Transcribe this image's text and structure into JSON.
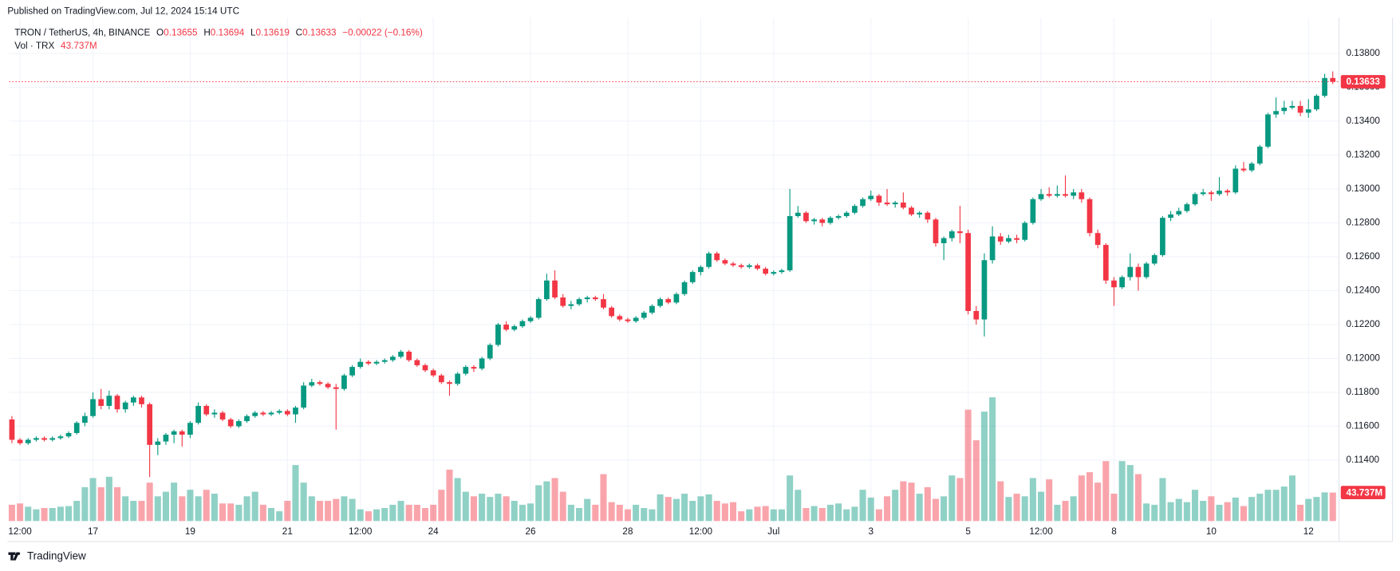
{
  "header": {
    "published": "Published on TradingView.com, Jul 12, 2024 15:14 UTC",
    "symbol": "TRON / TetherUS, 4h, BINANCE",
    "ohlc_labels": [
      "O",
      "H",
      "L",
      "C"
    ],
    "change": "−0.00022 (−0.16%)",
    "volume_title": "Vol · TRX"
  },
  "footer": {
    "brand": "TradingView"
  },
  "chart_data": {
    "type": "candlestick",
    "up_color": "#089981",
    "down_color": "#f23645",
    "grid": true,
    "ylim": [
      0.1103,
      0.1401
    ],
    "yticks": [
      {
        "value": 0.114,
        "label": "0.11400"
      },
      {
        "value": 0.116,
        "label": "0.11600"
      },
      {
        "value": 0.118,
        "label": "0.11800"
      },
      {
        "value": 0.12,
        "label": "0.12000"
      },
      {
        "value": 0.122,
        "label": "0.12200"
      },
      {
        "value": 0.124,
        "label": "0.12400"
      },
      {
        "value": 0.126,
        "label": "0.12600"
      },
      {
        "value": 0.128,
        "label": "0.12800"
      },
      {
        "value": 0.13,
        "label": "0.13000"
      },
      {
        "value": 0.132,
        "label": "0.13200"
      },
      {
        "value": 0.134,
        "label": "0.13400"
      },
      {
        "value": 0.136,
        "label": "0.13600"
      },
      {
        "value": 0.138,
        "label": "0.13800"
      }
    ],
    "categories": [
      null,
      "12:00",
      null,
      null,
      null,
      null,
      null,
      null,
      null,
      null,
      "17",
      null,
      null,
      null,
      null,
      null,
      null,
      null,
      null,
      null,
      null,
      null,
      "19",
      null,
      null,
      null,
      null,
      null,
      null,
      null,
      null,
      null,
      null,
      null,
      "21",
      null,
      null,
      null,
      null,
      null,
      null,
      null,
      null,
      "12:00",
      null,
      null,
      null,
      null,
      null,
      null,
      null,
      null,
      "24",
      null,
      null,
      null,
      null,
      null,
      null,
      null,
      null,
      null,
      null,
      null,
      "26",
      null,
      null,
      null,
      null,
      null,
      null,
      null,
      null,
      null,
      null,
      null,
      "28",
      null,
      null,
      null,
      null,
      null,
      null,
      null,
      null,
      "12:00",
      null,
      null,
      null,
      null,
      null,
      null,
      null,
      null,
      "Jul",
      null,
      null,
      null,
      null,
      null,
      null,
      null,
      null,
      null,
      null,
      null,
      "3",
      null,
      null,
      null,
      null,
      null,
      null,
      null,
      null,
      null,
      null,
      null,
      "5",
      null,
      null,
      null,
      null,
      null,
      null,
      null,
      null,
      "12:00",
      null,
      null,
      null,
      null,
      null,
      null,
      null,
      null,
      "8",
      null,
      null,
      null,
      null,
      null,
      null,
      null,
      null,
      null,
      null,
      null,
      "10",
      null,
      null,
      null,
      null,
      null,
      null,
      null,
      null,
      null,
      null,
      null,
      "12",
      null,
      null,
      null
    ],
    "open": [
      0.1164,
      0.1152,
      0.115,
      0.1152,
      0.1153,
      0.1152,
      0.1153,
      0.1154,
      0.1156,
      0.1162,
      0.1166,
      0.1176,
      0.1172,
      0.1178,
      0.117,
      0.1174,
      0.1177,
      0.1173,
      0.1149,
      0.1151,
      0.1155,
      0.1157,
      0.1155,
      0.1162,
      0.1172,
      0.1167,
      0.1168,
      0.1164,
      0.116,
      0.1163,
      0.1166,
      0.1168,
      0.1167,
      0.1168,
      0.1169,
      0.1167,
      0.1171,
      0.1184,
      0.1186,
      0.1185,
      0.1183,
      0.1182,
      0.119,
      0.1195,
      0.1198,
      0.1197,
      0.1198,
      0.1199,
      0.1201,
      0.1204,
      0.1199,
      0.1196,
      0.1193,
      0.119,
      0.1186,
      0.1185,
      0.1191,
      0.1195,
      0.1194,
      0.12,
      0.1208,
      0.122,
      0.1217,
      0.1219,
      0.1222,
      0.1224,
      0.1235,
      0.1246,
      0.1236,
      0.1231,
      0.1232,
      0.1235,
      0.1236,
      0.1235,
      0.123,
      0.1225,
      0.1223,
      0.1222,
      0.1224,
      0.1227,
      0.1231,
      0.1235,
      0.1233,
      0.1238,
      0.1245,
      0.1251,
      0.1254,
      0.1262,
      0.1258,
      0.1256,
      0.1255,
      0.1254,
      0.1255,
      0.1253,
      0.125,
      0.1251,
      0.1252,
      0.1284,
      0.1286,
      0.1281,
      0.1282,
      0.128,
      0.1283,
      0.1284,
      0.1286,
      0.129,
      0.1294,
      0.1296,
      0.1292,
      0.1291,
      0.1292,
      0.1289,
      0.1285,
      0.1286,
      0.1282,
      0.1268,
      0.1271,
      0.1275,
      0.1274,
      0.1228,
      0.1223,
      0.1258,
      0.1272,
      0.1269,
      0.1271,
      0.127,
      0.128,
      0.1294,
      0.1297,
      0.1296,
      0.1297,
      0.1296,
      0.1298,
      0.1294,
      0.1274,
      0.1267,
      0.1246,
      0.1242,
      0.1248,
      0.1254,
      0.1248,
      0.1256,
      0.1261,
      0.1283,
      0.1285,
      0.1287,
      0.1291,
      0.1297,
      0.1298,
      0.1297,
      0.1299,
      0.1298,
      0.1312,
      0.1311,
      0.1315,
      0.1325,
      0.1344,
      0.1346,
      0.1348,
      0.1349,
      0.1345,
      0.1347,
      0.1355,
      0.13655
    ],
    "high": [
      0.1166,
      0.1153,
      0.1153,
      0.1154,
      0.1154,
      0.1154,
      0.1155,
      0.1157,
      0.1163,
      0.1168,
      0.118,
      0.1182,
      0.1181,
      0.1179,
      0.1175,
      0.1178,
      0.1178,
      0.1174,
      0.1153,
      0.1156,
      0.1158,
      0.1158,
      0.1163,
      0.1174,
      0.1173,
      0.117,
      0.1169,
      0.1165,
      0.1164,
      0.1167,
      0.1169,
      0.1169,
      0.1169,
      0.117,
      0.117,
      0.1172,
      0.1186,
      0.1188,
      0.1187,
      0.1186,
      0.1185,
      0.1191,
      0.1196,
      0.12,
      0.1199,
      0.1199,
      0.12,
      0.1202,
      0.1205,
      0.1205,
      0.12,
      0.1197,
      0.1194,
      0.1191,
      0.1187,
      0.1192,
      0.1196,
      0.1196,
      0.1201,
      0.1209,
      0.1221,
      0.1222,
      0.122,
      0.1223,
      0.1225,
      0.1236,
      0.125,
      0.1252,
      0.1238,
      0.1234,
      0.1236,
      0.1237,
      0.1237,
      0.1238,
      0.1231,
      0.1226,
      0.1224,
      0.1225,
      0.1228,
      0.1232,
      0.1236,
      0.1236,
      0.1239,
      0.1246,
      0.1252,
      0.1255,
      0.1263,
      0.1263,
      0.1259,
      0.1257,
      0.1256,
      0.1256,
      0.1256,
      0.1254,
      0.1252,
      0.1253,
      0.13,
      0.129,
      0.1287,
      0.1283,
      0.1283,
      0.1284,
      0.1285,
      0.1287,
      0.1291,
      0.1295,
      0.1299,
      0.1297,
      0.13,
      0.1293,
      0.1298,
      0.129,
      0.1287,
      0.1287,
      0.1283,
      0.1272,
      0.1276,
      0.129,
      0.1276,
      0.1231,
      0.1262,
      0.1278,
      0.1274,
      0.1273,
      0.1273,
      0.1281,
      0.1295,
      0.13,
      0.1301,
      0.1302,
      0.1308,
      0.13,
      0.13,
      0.1295,
      0.1276,
      0.1268,
      0.1248,
      0.1249,
      0.1262,
      0.1256,
      0.1257,
      0.1262,
      0.1284,
      0.1287,
      0.1289,
      0.1292,
      0.1298,
      0.13,
      0.1299,
      0.1307,
      0.13,
      0.1314,
      0.1316,
      0.1316,
      0.1326,
      0.1345,
      0.1354,
      0.1352,
      0.1352,
      0.1352,
      0.1353,
      0.1356,
      0.1368,
      0.13694
    ],
    "low": [
      0.115,
      0.1149,
      0.1149,
      0.1151,
      0.1151,
      0.1151,
      0.1152,
      0.1153,
      0.1155,
      0.116,
      0.1165,
      0.117,
      0.117,
      0.1168,
      0.1168,
      0.1172,
      0.1171,
      0.113,
      0.1143,
      0.1149,
      0.115,
      0.1148,
      0.1153,
      0.1161,
      0.1166,
      0.1165,
      0.1163,
      0.1159,
      0.1159,
      0.1162,
      0.1165,
      0.1166,
      0.1166,
      0.1167,
      0.1166,
      0.1162,
      0.117,
      0.1183,
      0.1184,
      0.1182,
      0.1158,
      0.1181,
      0.1189,
      0.1194,
      0.1196,
      0.1196,
      0.1197,
      0.1198,
      0.12,
      0.1198,
      0.1195,
      0.1192,
      0.1189,
      0.1185,
      0.1178,
      0.1184,
      0.119,
      0.1192,
      0.1193,
      0.1199,
      0.1207,
      0.1216,
      0.1216,
      0.1218,
      0.1221,
      0.1223,
      0.1234,
      0.1235,
      0.123,
      0.1229,
      0.1231,
      0.1233,
      0.1234,
      0.1229,
      0.1224,
      0.1222,
      0.1221,
      0.1221,
      0.1223,
      0.1226,
      0.123,
      0.1232,
      0.1232,
      0.1237,
      0.1244,
      0.1249,
      0.1253,
      0.1257,
      0.1255,
      0.1254,
      0.1253,
      0.1253,
      0.1252,
      0.1249,
      0.1249,
      0.125,
      0.1251,
      0.1283,
      0.128,
      0.1279,
      0.1278,
      0.1279,
      0.1282,
      0.1283,
      0.1285,
      0.1289,
      0.1293,
      0.129,
      0.129,
      0.1289,
      0.1288,
      0.1284,
      0.1283,
      0.128,
      0.1266,
      0.1258,
      0.1269,
      0.1268,
      0.1226,
      0.122,
      0.1213,
      0.1256,
      0.1267,
      0.1268,
      0.1268,
      0.1269,
      0.1279,
      0.1293,
      0.1295,
      0.1295,
      0.1295,
      0.1294,
      0.1292,
      0.1272,
      0.1265,
      0.1244,
      0.1231,
      0.1241,
      0.1246,
      0.124,
      0.1247,
      0.1255,
      0.126,
      0.1281,
      0.1284,
      0.1286,
      0.129,
      0.1296,
      0.1293,
      0.1296,
      0.1296,
      0.1297,
      0.131,
      0.131,
      0.1314,
      0.1324,
      0.1342,
      0.1344,
      0.1347,
      0.1343,
      0.1342,
      0.1346,
      0.1354,
      0.13619
    ],
    "close": [
      0.1152,
      0.115,
      0.1152,
      0.1153,
      0.1152,
      0.1153,
      0.1154,
      0.1156,
      0.1162,
      0.1166,
      0.1176,
      0.1172,
      0.1178,
      0.117,
      0.1174,
      0.1177,
      0.1173,
      0.1149,
      0.1151,
      0.1155,
      0.1157,
      0.1155,
      0.1162,
      0.1172,
      0.1167,
      0.1168,
      0.1164,
      0.116,
      0.1163,
      0.1166,
      0.1168,
      0.1167,
      0.1168,
      0.1169,
      0.1167,
      0.1171,
      0.1184,
      0.1186,
      0.1185,
      0.1183,
      0.1182,
      0.119,
      0.1195,
      0.1198,
      0.1197,
      0.1198,
      0.1199,
      0.1201,
      0.1204,
      0.1199,
      0.1196,
      0.1193,
      0.119,
      0.1186,
      0.1185,
      0.1191,
      0.1195,
      0.1194,
      0.12,
      0.1208,
      0.122,
      0.1217,
      0.1219,
      0.1222,
      0.1224,
      0.1235,
      0.1246,
      0.1236,
      0.1231,
      0.1232,
      0.1235,
      0.1236,
      0.1235,
      0.123,
      0.1225,
      0.1223,
      0.1222,
      0.1224,
      0.1227,
      0.1231,
      0.1235,
      0.1233,
      0.1238,
      0.1245,
      0.1251,
      0.1254,
      0.1262,
      0.1258,
      0.1256,
      0.1255,
      0.1254,
      0.1255,
      0.1253,
      0.125,
      0.1251,
      0.1252,
      0.1284,
      0.1286,
      0.1281,
      0.1282,
      0.128,
      0.1283,
      0.1284,
      0.1286,
      0.129,
      0.1294,
      0.1296,
      0.1292,
      0.1291,
      0.1292,
      0.1289,
      0.1285,
      0.1286,
      0.1282,
      0.1268,
      0.1271,
      0.1275,
      0.1274,
      0.1228,
      0.1223,
      0.1258,
      0.1272,
      0.1269,
      0.1271,
      0.127,
      0.128,
      0.1294,
      0.1297,
      0.1296,
      0.1297,
      0.1296,
      0.1298,
      0.1294,
      0.1274,
      0.1267,
      0.1246,
      0.1242,
      0.1248,
      0.1254,
      0.1248,
      0.1256,
      0.1261,
      0.1283,
      0.1285,
      0.1287,
      0.1291,
      0.1297,
      0.1298,
      0.1297,
      0.1299,
      0.1298,
      0.1312,
      0.1311,
      0.1315,
      0.1325,
      0.1344,
      0.1346,
      0.1348,
      0.1349,
      0.1345,
      0.1347,
      0.1355,
      0.13655,
      0.13633
    ],
    "volume": {
      "vlim": [
        0,
        200
      ],
      "values": [
        25,
        27,
        22,
        18,
        20,
        20,
        22,
        23,
        31,
        52,
        66,
        52,
        68,
        52,
        38,
        31,
        31,
        59,
        38,
        45,
        59,
        38,
        48,
        38,
        48,
        42,
        27,
        27,
        25,
        38,
        45,
        25,
        20,
        15,
        31,
        86,
        59,
        38,
        31,
        31,
        34,
        38,
        34,
        18,
        15,
        18,
        20,
        25,
        31,
        25,
        25,
        20,
        25,
        48,
        79,
        66,
        45,
        38,
        42,
        37,
        42,
        38,
        31,
        25,
        27,
        55,
        61,
        66,
        45,
        25,
        20,
        34,
        25,
        72,
        29,
        25,
        18,
        25,
        20,
        18,
        41,
        37,
        34,
        42,
        31,
        38,
        41,
        31,
        27,
        29,
        15,
        18,
        22,
        23,
        18,
        18,
        70,
        48,
        20,
        23,
        20,
        25,
        27,
        18,
        22,
        48,
        36,
        18,
        38,
        48,
        61,
        59,
        42,
        52,
        34,
        38,
        70,
        66,
        171,
        124,
        168,
        190,
        61,
        37,
        42,
        38,
        66,
        45,
        64,
        25,
        31,
        38,
        70,
        75,
        59,
        92,
        42,
        92,
        86,
        72,
        27,
        25,
        66,
        29,
        34,
        29,
        48,
        31,
        38,
        25,
        29,
        36,
        23,
        37,
        42,
        48,
        48,
        53,
        70,
        25,
        34,
        37,
        44,
        43.737
      ],
      "value_labels": [
        null,
        null,
        null,
        null,
        null,
        null,
        null,
        null,
        null,
        null,
        null,
        null,
        null,
        null,
        null,
        null,
        null,
        null,
        null,
        null,
        null,
        null,
        null,
        null,
        null,
        null,
        null,
        null,
        null,
        null,
        null,
        null,
        null,
        null,
        null,
        null,
        null,
        null,
        null,
        null,
        null,
        null,
        null,
        null,
        null,
        null,
        null,
        null,
        null,
        null,
        null,
        null,
        null,
        null,
        null,
        null,
        null,
        null,
        null,
        null,
        null,
        null,
        null,
        null,
        null,
        null,
        null,
        null,
        null,
        null,
        null,
        null,
        null,
        null,
        null,
        null,
        null,
        null,
        null,
        null,
        null,
        null,
        null,
        null,
        null,
        null,
        null,
        null,
        null,
        null,
        null,
        null,
        null,
        null,
        null,
        null,
        null,
        null,
        null,
        null,
        null,
        null,
        null,
        null,
        null,
        null,
        null,
        null,
        null,
        null,
        null,
        null,
        null,
        null,
        null,
        null,
        null,
        null,
        null,
        null,
        null,
        null,
        null,
        null,
        null,
        null,
        null,
        null,
        null,
        null,
        null,
        null,
        null,
        null,
        null,
        null,
        null,
        null,
        null,
        null,
        null,
        null,
        null,
        null,
        null,
        null,
        null,
        null,
        null,
        null,
        null,
        null,
        null,
        null,
        null,
        null,
        null,
        null,
        null,
        null,
        null,
        null,
        null,
        "43.737M"
      ]
    }
  }
}
